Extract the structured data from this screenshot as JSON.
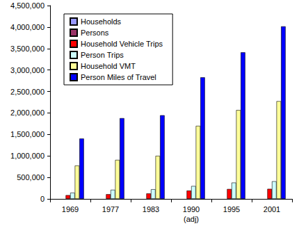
{
  "chart_data": {
    "type": "bar",
    "categories": [
      "1969",
      "1977",
      "1983",
      "1990\n(adj)",
      "1995",
      "2001"
    ],
    "series": [
      {
        "name": "Households",
        "color": "#9999FF",
        "values": [
          null,
          null,
          null,
          null,
          null,
          null
        ]
      },
      {
        "name": "Persons",
        "color": "#993366",
        "values": [
          null,
          null,
          null,
          null,
          null,
          null
        ]
      },
      {
        "name": "Household Vehicle Trips",
        "color": "#FF0000",
        "values": [
          87284,
          108826,
          126874,
          194000,
          229745,
          233000
        ]
      },
      {
        "name": "Person Trips",
        "color": "#CCFFFF",
        "values": [
          145146,
          211778,
          224089,
          300000,
          378930,
          410000
        ]
      },
      {
        "name": "Household VMT",
        "color": "#FFFF99",
        "values": [
          775940,
          907603,
          1002139,
          1700000,
          2068368,
          2274797
        ]
      },
      {
        "name": "Person Miles of Travel",
        "color": "#0000FF",
        "values": [
          1404137,
          1879215,
          1946662,
          2830000,
          3411122,
          4016000
        ]
      }
    ],
    "ylim": [
      0,
      4500000
    ],
    "yticks": [
      0,
      {
        "value": 500000,
        "label": "500,000"
      },
      {
        "value": 1000000,
        "label": "1,000,000"
      },
      {
        "value": 1500000,
        "label": "1,500,000"
      },
      {
        "value": 2000000,
        "label": "2,000,000"
      },
      {
        "value": 2500000,
        "label": "2,500,000"
      },
      {
        "value": 3000000,
        "label": "3,000,000"
      },
      {
        "value": 3500000,
        "label": "3,500,000"
      },
      {
        "value": 4000000,
        "label": "4,000,000"
      },
      {
        "value": 4500000,
        "label": "4,500,000"
      }
    ],
    "grid": false,
    "legend": "top"
  }
}
